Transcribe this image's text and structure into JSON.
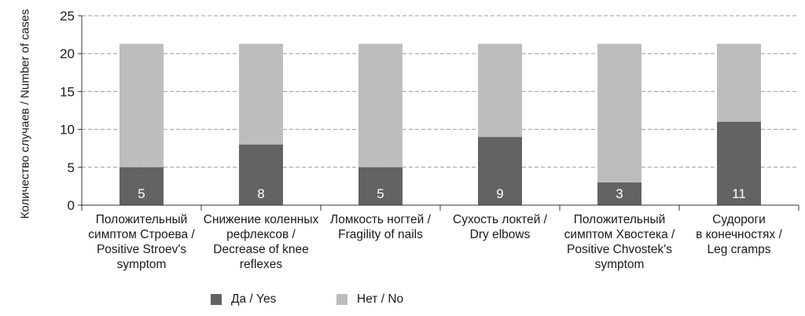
{
  "chart_data": {
    "type": "bar",
    "stacked": true,
    "ylabel": "Количество случаев / Number of cases",
    "ylim": [
      0,
      25
    ],
    "yticks": [
      0,
      5,
      10,
      15,
      20,
      25
    ],
    "categories": [
      "Положительный симптом Строева / Positive Stroev's symptom",
      "Снижение коленных рефлексов / Decrease of knee reflexes",
      "Ломкость ногтей / Fragility of nails",
      "Сухость локтей / Dry elbows",
      "Положительный симптом Хвостека / Positive Chvostek's symptom",
      "Судороги в конечностях / Leg cramps"
    ],
    "category_lines": [
      [
        "Положительный",
        "симптом Строева /",
        "Positive Stroev's",
        "symptom"
      ],
      [
        "Снижение коленных",
        "рефлексов /",
        "Decrease of knee",
        "reflexes"
      ],
      [
        "Ломкость ногтей /",
        "Fragility of nails"
      ],
      [
        "Сухость локтей /",
        "Dry elbows"
      ],
      [
        "Положительный",
        "симптом Хвостека /",
        "Positive Chvostek's",
        "symptom"
      ],
      [
        "Судороги",
        "в конечностях /",
        "Leg cramps"
      ]
    ],
    "series": [
      {
        "name": "Да / Yes",
        "color": "#636363",
        "values": [
          5,
          8,
          5,
          9,
          3,
          11
        ],
        "labels": [
          "5",
          "8",
          "5",
          "9",
          "3",
          "11"
        ]
      },
      {
        "name": "Нет / No",
        "color": "#bdbdbd",
        "values": [
          16.3,
          13.3,
          16.3,
          12.3,
          18.3,
          10.3
        ]
      }
    ],
    "grid": true,
    "legend": "bottom"
  }
}
